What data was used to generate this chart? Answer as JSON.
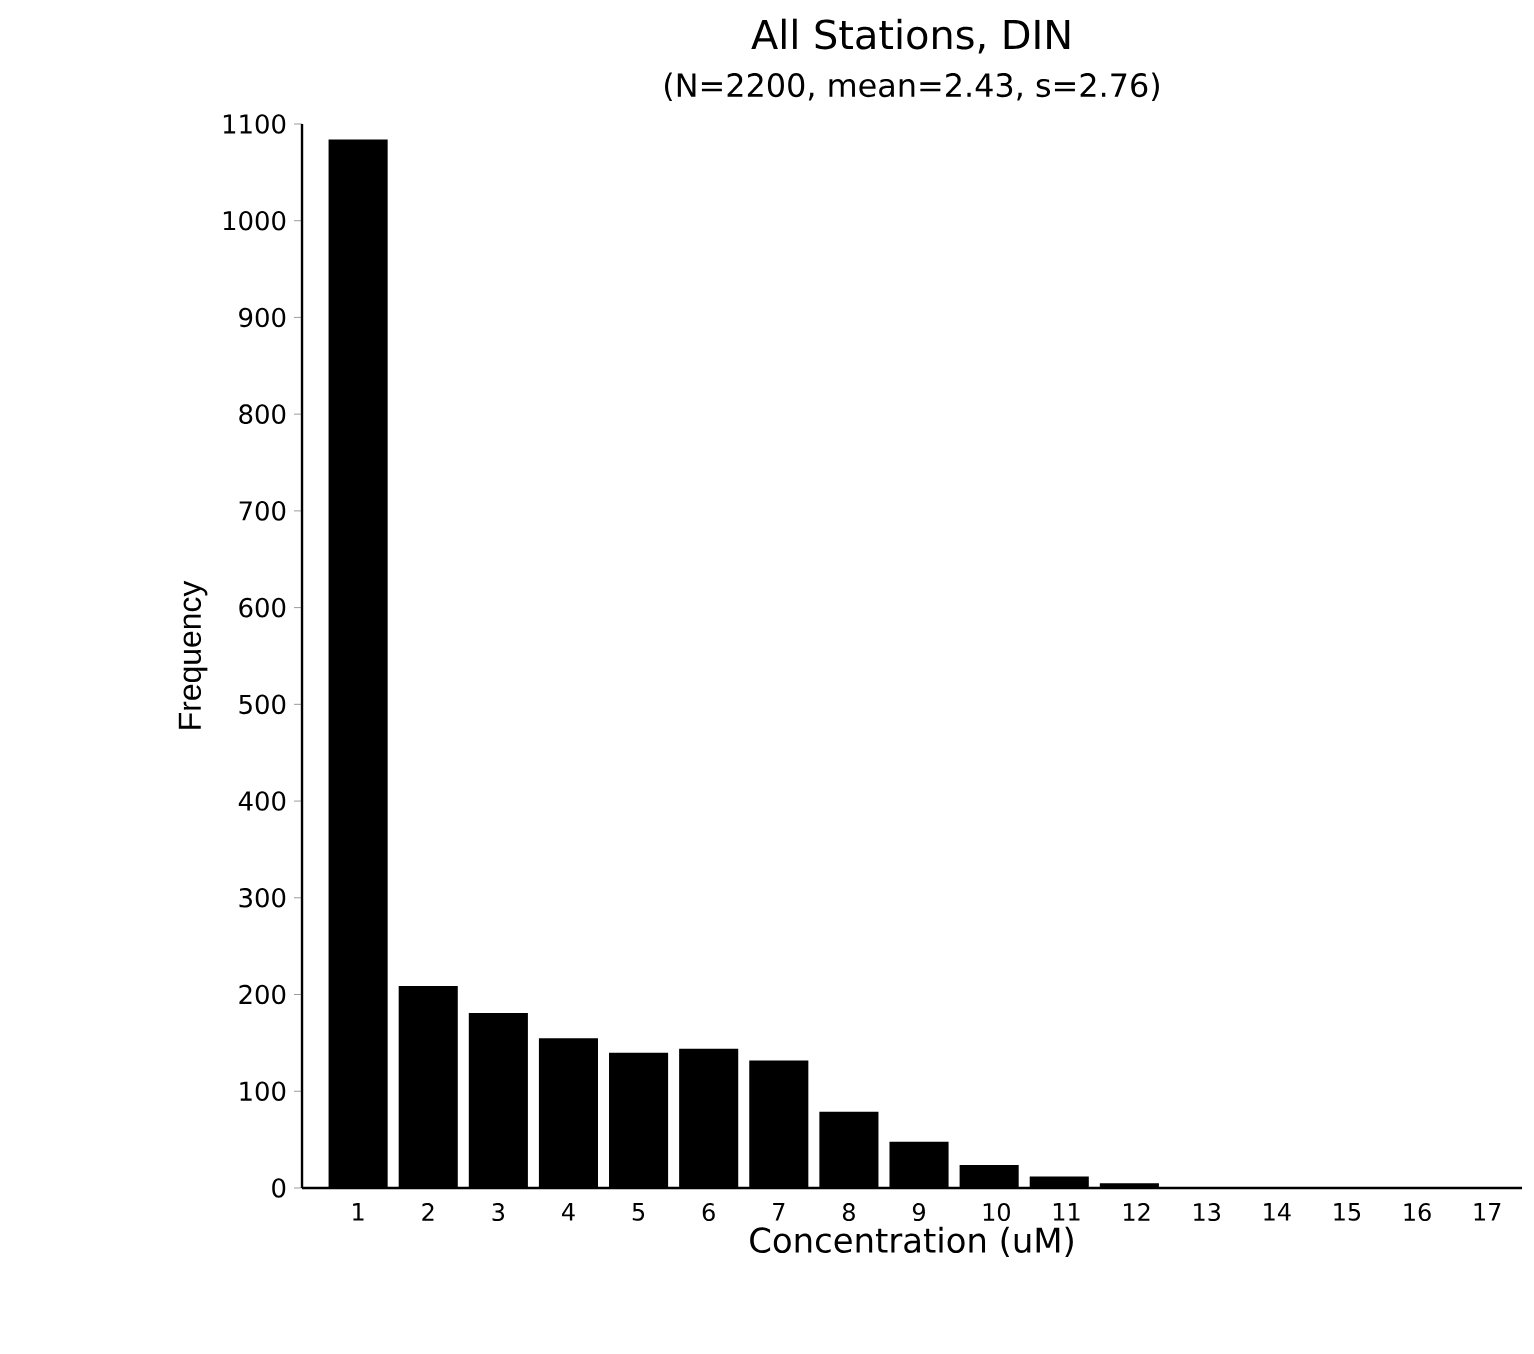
{
  "chart_data": {
    "type": "bar",
    "title": "All Stations, DIN",
    "subtitle": "(N=2200, mean=2.43, s=2.76)",
    "xlabel": "Concentration (uM)",
    "ylabel": "Frequency",
    "categories": [
      "1",
      "2",
      "3",
      "4",
      "5",
      "6",
      "7",
      "8",
      "9",
      "10",
      "11",
      "12",
      "13",
      "14",
      "15",
      "16",
      "17"
    ],
    "values": [
      1083,
      208,
      180,
      154,
      139,
      143,
      131,
      78,
      47,
      23,
      11,
      4,
      null,
      null,
      null,
      0,
      0
    ],
    "color": "#000000",
    "ylim": [
      0,
      1100
    ],
    "yticks": [
      0,
      100,
      200,
      300,
      400,
      500,
      600,
      700,
      800,
      900,
      1000,
      1100
    ],
    "grid": false
  }
}
